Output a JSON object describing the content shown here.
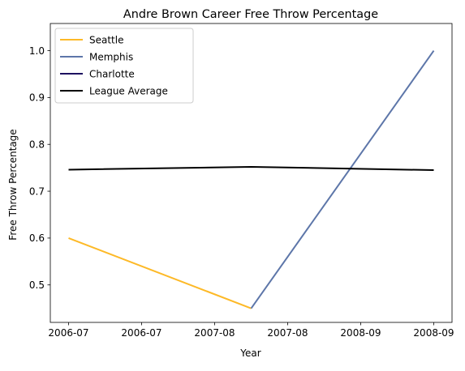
{
  "chart_data": {
    "type": "line",
    "title": "Andre Brown  Career Free Throw Percentage",
    "xlabel": "Year",
    "ylabel": "Free Throw Percentage",
    "x_tick_labels": [
      "2006-07",
      "2006-07",
      "2007-08",
      "2007-08",
      "2008-09",
      "2008-09"
    ],
    "x_tick_positions": [
      0,
      0.4,
      0.8,
      1.2,
      1.6,
      2.0
    ],
    "xlim": [
      -0.1,
      2.1
    ],
    "ylim": [
      0.42,
      1.058
    ],
    "y_ticks": [
      0.5,
      0.6,
      0.7,
      0.8,
      0.9,
      1.0
    ],
    "y_tick_labels": [
      "0.5",
      "0.6",
      "0.7",
      "0.8",
      "0.9",
      "1.0"
    ],
    "grid": false,
    "legend_position": "top-left",
    "series": [
      {
        "name": "Seattle",
        "color": "#FDB927",
        "x": [
          0,
          1
        ],
        "y": [
          0.6,
          0.45
        ]
      },
      {
        "name": "Memphis",
        "color": "#5D76A9",
        "x": [
          1,
          2
        ],
        "y": [
          0.45,
          1.0
        ]
      },
      {
        "name": "Charlotte",
        "color": "#1D1160",
        "x": [],
        "y": []
      },
      {
        "name": "League Average",
        "color": "#000000",
        "x": [
          0,
          1,
          2
        ],
        "y": [
          0.746,
          0.752,
          0.745
        ]
      }
    ]
  }
}
